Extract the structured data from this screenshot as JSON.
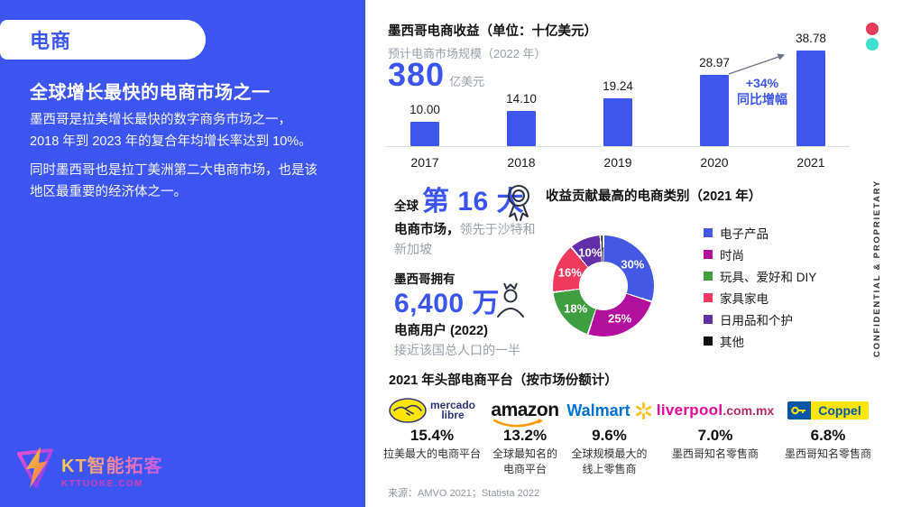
{
  "left_panel": {
    "tag": "电商",
    "heading": "全球增长最快的电商市场之一",
    "paragraph1": "墨西哥是拉美增长最快的数字商务市场之一，\n2018 年到 2023 年的复合年均增长率达到 10%。",
    "paragraph2": "同时墨西哥也是拉丁美洲第二大电商市场，也是该\n地区最重要的经济体之一。",
    "panel_color": "#3d55f0",
    "logo": {
      "name": "KT智能拓客",
      "url": "KTTUOKE.COM",
      "icon": "lightning-bolt-icon"
    }
  },
  "right_rail": {
    "confidential": "CONFIDENTIAL & PROPRIETARY",
    "dot_colors": [
      "#e93a5a",
      "#3ddfce"
    ]
  },
  "chart_data": [
    {
      "type": "bar",
      "title": "墨西哥电商收益（单位：十亿美元）",
      "subtitle": "预计电商市场规模（2022 年）",
      "highlight_value": "380",
      "highlight_unit": "亿美元",
      "categories": [
        "2017",
        "2018",
        "2019",
        "2020",
        "2021"
      ],
      "values": [
        10.0,
        14.1,
        19.24,
        28.97,
        38.78
      ],
      "value_labels": [
        "10.00",
        "14.10",
        "19.24",
        "28.97",
        "38.78"
      ],
      "bar_color": "#3d56ec",
      "ylim": [
        0,
        40
      ],
      "annotation": {
        "line1": "+34%",
        "line2": "同比增幅"
      }
    },
    {
      "type": "donut",
      "title": "收益贡献最高的电商类别（2021 年）",
      "slices": [
        {
          "label": "电子产品",
          "value": 30,
          "pct": "30%",
          "color": "#4458e4"
        },
        {
          "label": "时尚",
          "value": 25,
          "pct": "25%",
          "color": "#b30f9e"
        },
        {
          "label": "玩具、爱好和 DIY",
          "value": 18,
          "pct": "18%",
          "color": "#3f9e40"
        },
        {
          "label": "家具家电",
          "value": 16,
          "pct": "16%",
          "color": "#ef3a5e"
        },
        {
          "label": "日用品和个护",
          "value": 10,
          "pct": "10%",
          "color": "#632fa8"
        },
        {
          "label": "其他",
          "value": 1,
          "pct": "",
          "color": "#111111"
        }
      ],
      "legend_position": "right"
    }
  ],
  "stats": [
    {
      "icon": "medal-icon",
      "prefix": "全球",
      "big": "第 16 大",
      "bold_line": "电商市场，",
      "gray_line": "领先于沙特和\n新加坡"
    },
    {
      "icon": "user-crown-icon",
      "prefix": "墨西哥拥有",
      "big": "6,400 万",
      "bold_line": "电商用户 (2022)",
      "gray_line": "接近该国总人口的一半"
    }
  ],
  "platforms": {
    "title": "2021 年头部电商平台（按市场份额计）",
    "items": [
      {
        "name": "mercado libre",
        "logo_line1": "mercado",
        "logo_line2": "libre",
        "share": "15.4%",
        "desc": "拉美最大的电商平台"
      },
      {
        "name": "amazon",
        "logo_text": "amazon",
        "share": "13.2%",
        "desc": "全球最知名的\n电商平台"
      },
      {
        "name": "Walmart",
        "logo_text": "Walmart",
        "share": "9.6%",
        "desc": "全球规模最大的\n线上零售商"
      },
      {
        "name": "liverpool.com.mx",
        "logo_text1": "liverpool",
        "logo_text2": ".com.mx",
        "share": "7.0%",
        "desc": "墨西哥知名零售商"
      },
      {
        "name": "Coppel",
        "logo_text": "Coppel",
        "share": "6.8%",
        "desc": "墨西哥知名零售商"
      }
    ]
  },
  "source": "来源：AMVO 2021；Statista 2022"
}
